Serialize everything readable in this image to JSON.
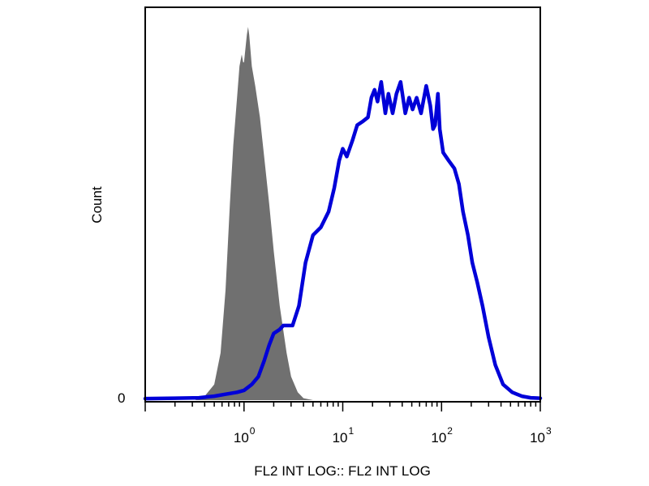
{
  "chart_data": {
    "type": "area",
    "xscale": "log",
    "xlim": [
      0.1,
      1000
    ],
    "xlabel": "FL2 INT LOG:: FL2 INT LOG",
    "ylabel": "Count",
    "ylim": [
      0,
      100
    ],
    "ytick_labels": [
      "0"
    ],
    "xticks": [
      {
        "value": 1,
        "base": "10",
        "exp": "0"
      },
      {
        "value": 10,
        "base": "10",
        "exp": "1"
      },
      {
        "value": 100,
        "base": "10",
        "exp": "2"
      },
      {
        "value": 1000,
        "base": "10",
        "exp": "3"
      }
    ],
    "legend": "none",
    "grid": false,
    "series": [
      {
        "color": "#707070",
        "style": "filled",
        "points": [
          [
            0.32,
            0
          ],
          [
            0.4,
            1
          ],
          [
            0.5,
            4
          ],
          [
            0.58,
            12
          ],
          [
            0.65,
            28
          ],
          [
            0.72,
            50
          ],
          [
            0.78,
            65
          ],
          [
            0.85,
            77
          ],
          [
            0.9,
            85
          ],
          [
            0.95,
            88
          ],
          [
            0.98,
            86
          ],
          [
            1.0,
            86
          ],
          [
            1.03,
            89
          ],
          [
            1.07,
            93
          ],
          [
            1.1,
            95
          ],
          [
            1.13,
            93
          ],
          [
            1.2,
            85
          ],
          [
            1.3,
            80
          ],
          [
            1.45,
            72
          ],
          [
            1.6,
            62
          ],
          [
            1.8,
            50
          ],
          [
            2.0,
            38
          ],
          [
            2.3,
            24
          ],
          [
            2.7,
            12
          ],
          [
            3.0,
            6
          ],
          [
            3.5,
            2
          ],
          [
            4.0,
            0.5
          ],
          [
            5.0,
            0
          ]
        ]
      },
      {
        "color": "#0000d8",
        "style": "line",
        "points": [
          [
            0.1,
            0.4
          ],
          [
            0.2,
            0.5
          ],
          [
            0.35,
            0.6
          ],
          [
            0.5,
            1
          ],
          [
            0.65,
            1.5
          ],
          [
            0.85,
            2
          ],
          [
            1.0,
            2.5
          ],
          [
            1.2,
            4
          ],
          [
            1.4,
            6
          ],
          [
            1.6,
            10
          ],
          [
            1.8,
            14
          ],
          [
            2.0,
            17
          ],
          [
            2.3,
            18
          ],
          [
            2.5,
            19
          ],
          [
            2.8,
            19
          ],
          [
            3.1,
            19
          ],
          [
            3.6,
            24
          ],
          [
            4.2,
            35
          ],
          [
            5.0,
            42
          ],
          [
            6.0,
            44
          ],
          [
            7.2,
            48
          ],
          [
            8.2,
            54
          ],
          [
            9.2,
            61
          ],
          [
            10.0,
            64
          ],
          [
            11.0,
            62
          ],
          [
            12.5,
            66
          ],
          [
            14.0,
            70
          ],
          [
            16.0,
            71
          ],
          [
            18.0,
            72
          ],
          [
            19.5,
            77
          ],
          [
            21.0,
            79
          ],
          [
            22.5,
            76
          ],
          [
            24.5,
            81
          ],
          [
            27.0,
            73
          ],
          [
            29.0,
            78
          ],
          [
            32.0,
            73
          ],
          [
            35.0,
            78
          ],
          [
            38.5,
            81
          ],
          [
            43.0,
            73
          ],
          [
            47.0,
            77
          ],
          [
            51.0,
            74
          ],
          [
            56.0,
            77
          ],
          [
            62.0,
            73
          ],
          [
            70.0,
            80
          ],
          [
            77.0,
            75
          ],
          [
            82.0,
            69
          ],
          [
            86.0,
            70
          ],
          [
            92.0,
            78
          ],
          [
            96.0,
            69
          ],
          [
            104.0,
            63
          ],
          [
            118.0,
            61
          ],
          [
            135.0,
            59
          ],
          [
            150.0,
            55
          ],
          [
            165.0,
            48
          ],
          [
            185.0,
            42
          ],
          [
            205.0,
            35
          ],
          [
            230.0,
            30
          ],
          [
            260.0,
            24
          ],
          [
            300.0,
            16
          ],
          [
            350.0,
            9
          ],
          [
            420.0,
            4
          ],
          [
            520.0,
            2
          ],
          [
            650.0,
            1
          ],
          [
            800.0,
            0.6
          ],
          [
            1000.0,
            0.5
          ]
        ]
      }
    ]
  }
}
